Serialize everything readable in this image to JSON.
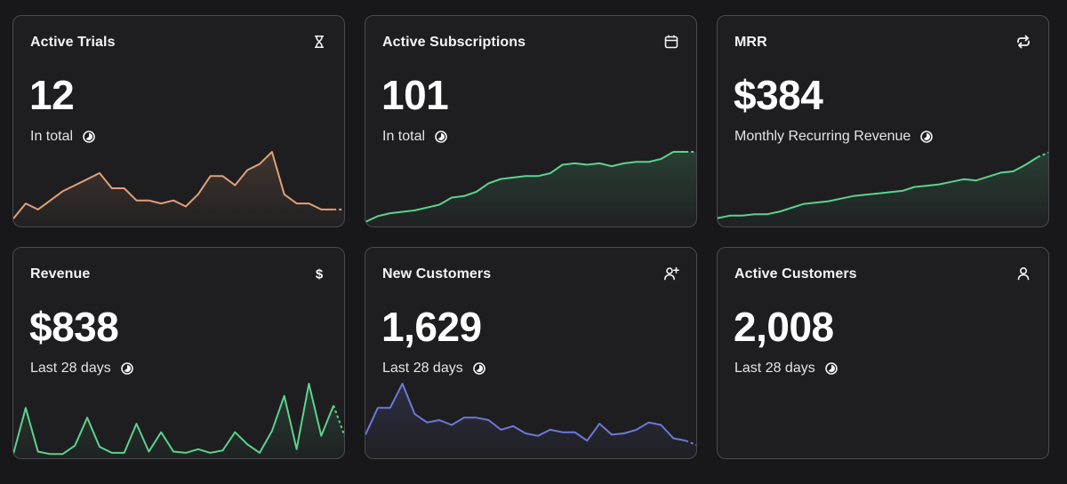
{
  "cards": [
    {
      "title": "Active Trials",
      "value": "12",
      "subtitle": "In total",
      "icon": "hourglass-icon",
      "color": "#e0a07a",
      "spark": [
        2,
        7,
        5,
        8,
        11,
        13,
        15,
        17,
        12,
        12,
        8,
        8,
        7,
        8,
        6,
        10,
        16,
        16,
        13,
        18,
        20,
        24,
        10,
        7,
        7,
        5,
        5,
        5
      ],
      "dashed_tail": true
    },
    {
      "title": "Active Subscriptions",
      "value": "101",
      "subtitle": "In total",
      "icon": "calendar-icon",
      "color": "#5dd28e",
      "spark": [
        2,
        6,
        8,
        9,
        10,
        12,
        14,
        19,
        20,
        23,
        29,
        32,
        33,
        34,
        34,
        36,
        42,
        43,
        42,
        43,
        41,
        43,
        44,
        44,
        46,
        51,
        51,
        51
      ],
      "dashed_tail": true
    },
    {
      "title": "MRR",
      "value": "$384",
      "subtitle": "Monthly Recurring Revenue",
      "icon": "repeat-icon",
      "color": "#5dd28e",
      "spark": [
        5,
        7,
        7,
        8,
        8,
        10,
        13,
        16,
        17,
        18,
        20,
        22,
        23,
        24,
        25,
        26,
        29,
        30,
        31,
        33,
        35,
        34,
        37,
        40,
        41,
        46,
        52,
        56
      ],
      "dashed_tail": true
    },
    {
      "title": "Revenue",
      "value": "$838",
      "subtitle": "Last 28 days",
      "icon": "dollar-icon",
      "color": "#5dd28e",
      "spark": [
        2,
        40,
        4,
        2,
        2,
        9,
        32,
        8,
        3,
        3,
        27,
        4,
        20,
        4,
        3,
        6,
        3,
        5,
        20,
        10,
        3,
        21,
        50,
        6,
        60,
        17,
        42,
        14
      ],
      "dashed_tail": true
    },
    {
      "title": "New Customers",
      "value": "1,629",
      "subtitle": "Last 28 days",
      "icon": "user-plus-icon",
      "color": "#6e79d8",
      "spark": [
        18,
        40,
        40,
        60,
        35,
        28,
        30,
        26,
        32,
        32,
        30,
        22,
        25,
        19,
        17,
        22,
        20,
        20,
        13,
        27,
        18,
        19,
        22,
        28,
        26,
        15,
        13,
        9
      ],
      "dashed_tail": true
    },
    {
      "title": "Active Customers",
      "value": "2,008",
      "subtitle": "Last 28 days",
      "icon": "user-icon",
      "color": "#5dd28e",
      "spark": [],
      "dashed_tail": false
    }
  ]
}
